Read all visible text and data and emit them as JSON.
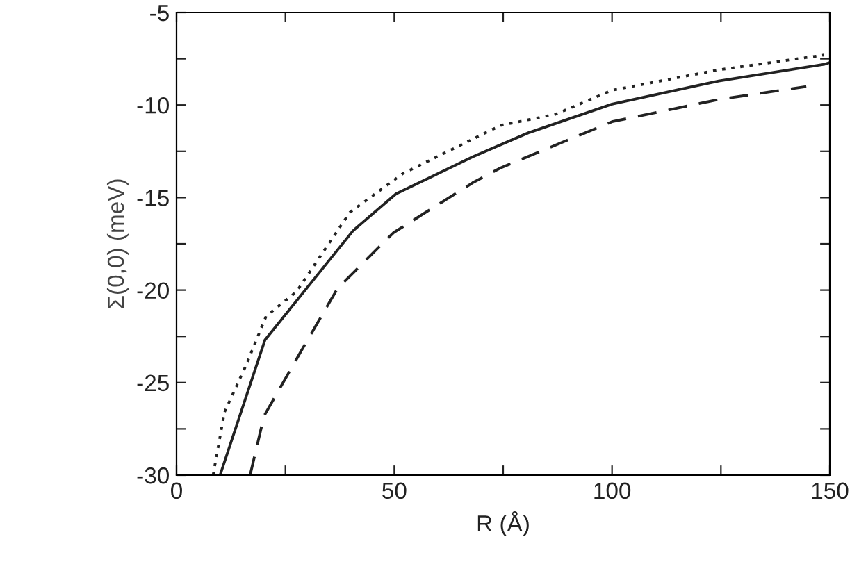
{
  "chart_data": {
    "type": "line",
    "xlabel": "R (Å)",
    "ylabel": "Σ(0,0) (meV)",
    "xlim": [
      0,
      150
    ],
    "ylim": [
      -30,
      -5
    ],
    "xticks": [
      0,
      {
        "value": 25,
        "label": null
      },
      50,
      {
        "value": 75,
        "label": null
      },
      100,
      {
        "value": 125,
        "label": null
      },
      150
    ],
    "yticks": [
      -30,
      {
        "value": -27.5,
        "label": null
      },
      -25,
      {
        "value": -22.5,
        "label": null
      },
      -20,
      {
        "value": -17.5,
        "label": null
      },
      -15,
      {
        "value": -12.5,
        "label": null
      },
      -10,
      {
        "value": -7.5,
        "label": null
      },
      -5
    ],
    "grid": false,
    "legend": false,
    "marker": "none",
    "series": [
      {
        "color": "#222222",
        "line_style": "solid",
        "x": [
          10,
          20.3,
          40.5,
          50.4,
          68,
          80.8,
          100,
          124.5,
          148.7,
          150
        ],
        "values": [
          -30,
          -22.7,
          -16.8,
          -14.8,
          -12.8,
          -11.5,
          -9.95,
          -8.7,
          -7.8,
          -7.7
        ]
      },
      {
        "color": "#222222",
        "line_style": "dotted",
        "x": [
          8.4,
          11,
          15.9,
          20.6,
          27.5,
          39.8,
          52,
          74.4,
          87,
          100,
          124.5,
          148.7
        ],
        "values": [
          -30,
          -26.6,
          -24.1,
          -21.4,
          -20.1,
          -15.8,
          -13.7,
          -11.1,
          -10.5,
          -9.2,
          -8.1,
          -7.3
        ]
      },
      {
        "color": "#222222",
        "line_style": "dashed",
        "x": [
          16.9,
          20.1,
          28.6,
          37,
          49.8,
          68,
          74.4,
          100,
          124.5,
          144.6
        ],
        "values": [
          -30,
          -26.8,
          -23.3,
          -19.9,
          -16.9,
          -14.2,
          -13.4,
          -10.9,
          -9.7,
          -9.0
        ]
      }
    ]
  }
}
